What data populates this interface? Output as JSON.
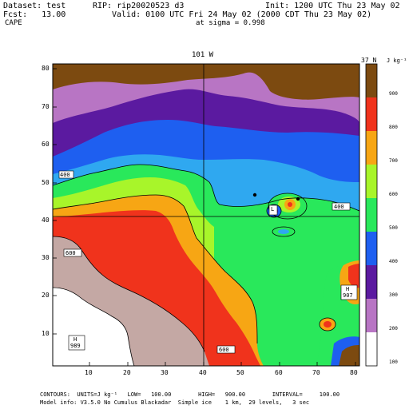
{
  "header": {
    "dataset": "Dataset: test",
    "rip": "RIP: rip20020523 d3",
    "init": "Init: 1200 UTC Thu 23 May 02",
    "fcst": "Fcst:   13.00",
    "valid": "Valid: 0100 UTC Fri 24 May 02 (2000 CDT Thu 23 May 02)",
    "field": "CAPE",
    "sigma": "at sigma = 0.998"
  },
  "map": {
    "top_marker_left": "101 W",
    "top_marker_right": "37 N",
    "x_ticks": [
      "10",
      "20",
      "30",
      "40",
      "50",
      "60",
      "70",
      "80"
    ],
    "y_ticks": [
      "10",
      "20",
      "30",
      "40",
      "50",
      "60",
      "70",
      "80"
    ],
    "contour_labels": [
      "400",
      "600",
      "600",
      "400"
    ],
    "high_labels": [
      {
        "letter": "H",
        "value": "989"
      },
      {
        "letter": "H",
        "value": "907"
      }
    ],
    "low_labels": [
      {
        "letter": "L",
        "value": ""
      }
    ],
    "colors": {
      "brown": "#7c4a10",
      "orchid": "#b875c4",
      "purple": "#5b1aa0",
      "blue": "#1e5ff0",
      "cyan": "#2fa8f0",
      "green": "#29e85b",
      "yellowgreen": "#a8f52a",
      "orange": "#f7a614",
      "red": "#f0331c",
      "tan": "#c4a8a4",
      "white": "#ffffff"
    }
  },
  "colorbar": {
    "unit": "J kg⁻¹",
    "labels": [
      "900",
      "800",
      "700",
      "600",
      "500",
      "400",
      "300",
      "200",
      "100"
    ]
  },
  "footer": {
    "contours": "CONTOURS:  UNITS=J kg⁻¹   LOW=   100.00        HIGH=   900.00        INTERVAL=     100.00",
    "model": "Model info: V3.5.0 No Cumulus Blackadar  Simple ice    1 km,  29 levels,   3 sec"
  }
}
